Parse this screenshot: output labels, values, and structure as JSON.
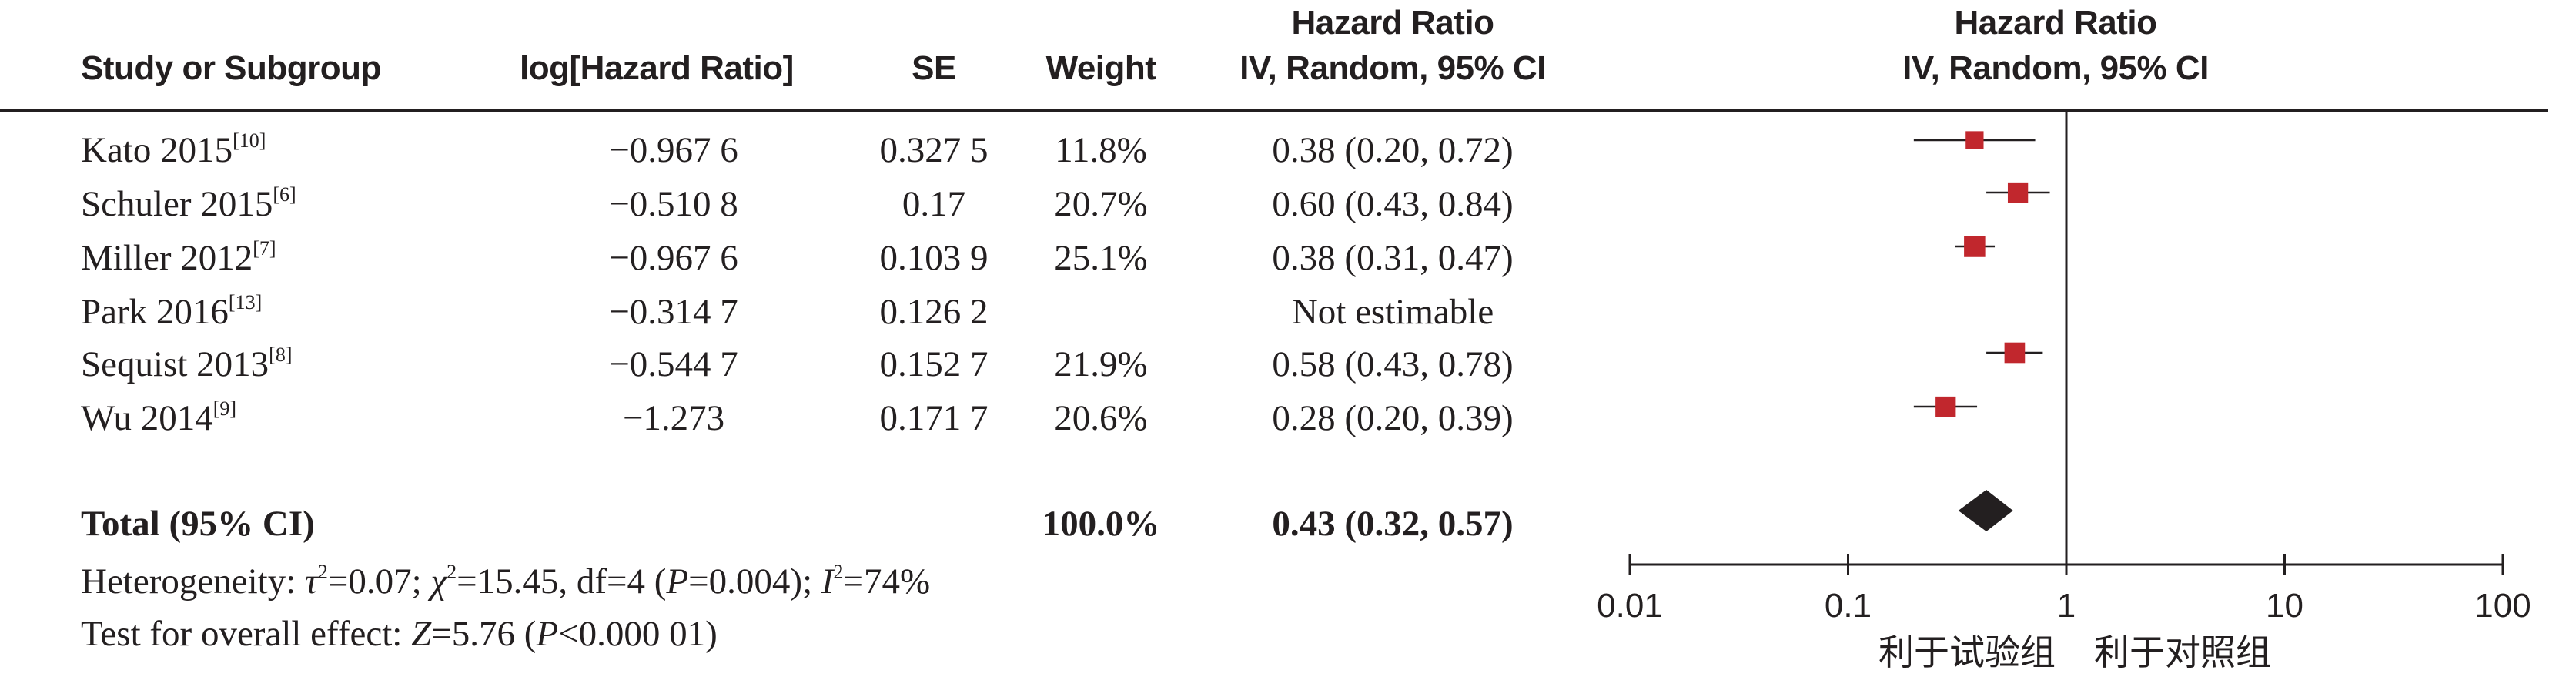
{
  "headers": {
    "study": "Study or Subgroup",
    "log_hr": "log[Hazard Ratio]",
    "se": "SE",
    "weight": "Weight",
    "hr_line1": "Hazard Ratio",
    "hr_line2": "IV, Random, 95% CI",
    "plot_line1": "Hazard Ratio",
    "plot_line2": "IV, Random, 95% CI"
  },
  "studies": [
    {
      "name": "Kato 2015",
      "ref": "[10]",
      "log_hr": "−0.967 6",
      "se": "0.327 5",
      "weight": "11.8%",
      "ci_text": "0.38 (0.20, 0.72)"
    },
    {
      "name": "Schuler 2015",
      "ref": "[6]",
      "log_hr": "−0.510 8",
      "se": "0.17",
      "weight": "20.7%",
      "ci_text": "0.60 (0.43, 0.84)"
    },
    {
      "name": "Miller 2012",
      "ref": "[7]",
      "log_hr": "−0.967 6",
      "se": "0.103 9",
      "weight": "25.1%",
      "ci_text": "0.38 (0.31, 0.47)"
    },
    {
      "name": "Park  2016",
      "ref": "[13]",
      "log_hr": "−0.314 7",
      "se": "0.126 2",
      "weight": "",
      "ci_text": "Not estimable"
    },
    {
      "name": "Sequist 2013",
      "ref": "[8]",
      "log_hr": "−0.544 7",
      "se": "0.152 7",
      "weight": "21.9%",
      "ci_text": "0.58 (0.43, 0.78)"
    },
    {
      "name": "Wu 2014",
      "ref": "[9]",
      "log_hr": "−1.273",
      "se": "0.171 7",
      "weight": "20.6%",
      "ci_text": "0.28 (0.20, 0.39)"
    }
  ],
  "total": {
    "label": "Total (95% CI)",
    "weight": "100.0%",
    "ci_text": "0.43 (0.32, 0.57)"
  },
  "heterogeneity": {
    "prefix": "Heterogeneity: ",
    "tau_sym": "τ",
    "tau_val": "=0.07; ",
    "chi_sym": "χ",
    "chi_val": "=15.45, df=4 (",
    "p_sym": "P",
    "p_val": "=0.004); ",
    "i_sym": "I",
    "i_val": "=74%"
  },
  "overall": {
    "prefix": "Test for overall effect: ",
    "z_sym": "Z",
    "z_val": "=5.76 (",
    "p_sym": "P",
    "p_val": "<0.000 01)"
  },
  "favours": {
    "left": "利于试验组",
    "right": "利于对照组"
  },
  "colors": {
    "marker": "#c1272d",
    "diamond": "#231f20",
    "line": "#231f20"
  },
  "chart_data": {
    "type": "forest",
    "scale": "log",
    "xlim": [
      0.01,
      100
    ],
    "ticks": [
      {
        "value": 0.01,
        "label": "0.01"
      },
      {
        "value": 0.1,
        "label": "0.1"
      },
      {
        "value": 1,
        "label": "1"
      },
      {
        "value": 10,
        "label": "10"
      },
      {
        "value": 100,
        "label": "100"
      }
    ],
    "null_value": 1,
    "points": [
      {
        "study": "Kato 2015",
        "hr": 0.38,
        "lower": 0.2,
        "upper": 0.72,
        "weight": 11.8
      },
      {
        "study": "Schuler 2015",
        "hr": 0.6,
        "lower": 0.43,
        "upper": 0.84,
        "weight": 20.7
      },
      {
        "study": "Miller 2012",
        "hr": 0.38,
        "lower": 0.31,
        "upper": 0.47,
        "weight": 25.1
      },
      {
        "study": "Park  2016",
        "hr": null,
        "lower": null,
        "upper": null,
        "weight": null
      },
      {
        "study": "Sequist 2013",
        "hr": 0.58,
        "lower": 0.43,
        "upper": 0.78,
        "weight": 21.9
      },
      {
        "study": "Wu 2014",
        "hr": 0.28,
        "lower": 0.2,
        "upper": 0.39,
        "weight": 20.6
      }
    ],
    "pooled": {
      "hr": 0.43,
      "lower": 0.32,
      "upper": 0.57
    }
  }
}
